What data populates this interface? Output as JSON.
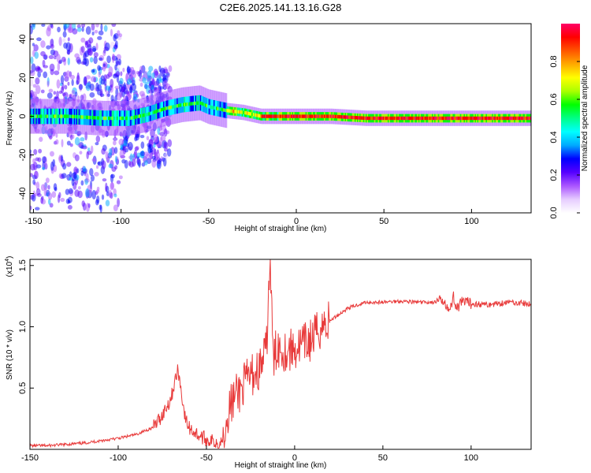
{
  "title": "C2E6.2025.141.13.16.G28",
  "chart_data": [
    {
      "type": "heatmap",
      "xlabel": "Height of straight line (km)",
      "ylabel": "Frequency (Hz)",
      "xlim": [
        -152,
        134
      ],
      "ylim": [
        -50,
        48
      ],
      "x_ticks": [
        -150,
        -100,
        -50,
        0,
        50,
        100
      ],
      "y_ticks": [
        -40,
        -20,
        0,
        20,
        40
      ],
      "colorbar": {
        "label": "Normalized spectral amplitude",
        "range": [
          0,
          1
        ],
        "ticks": [
          0.0,
          0.2,
          0.4,
          0.6,
          0.8
        ],
        "colors": [
          "#ffffff",
          "#e6ccff",
          "#aa55ff",
          "#5500ff",
          "#0000ff",
          "#00aaff",
          "#00ffff",
          "#00ff88",
          "#00ff00",
          "#aaff00",
          "#ffff00",
          "#ffaa00",
          "#ff5500",
          "#ff0000",
          "#ff0066"
        ]
      },
      "ridge": {
        "x": [
          -152,
          -130,
          -110,
          -95,
          -85,
          -75,
          -65,
          -55,
          -50,
          -40,
          -30,
          -25,
          -20,
          -10,
          0,
          10,
          20,
          40,
          60,
          80,
          100,
          120,
          134
        ],
        "frequency": [
          0,
          0,
          -1,
          -1,
          1,
          4,
          6,
          7,
          5,
          3,
          2,
          1,
          0,
          0,
          0,
          0,
          0,
          -1,
          -1,
          -1,
          -1,
          -1,
          -1
        ]
      }
    },
    {
      "type": "line",
      "xlabel": "Height of straight line (km)",
      "ylabel": "SNR (10 * v/v)",
      "multiplier_label": "(x10",
      "multiplier_exponent": "4",
      "xlim": [
        -150,
        134
      ],
      "ylim": [
        0,
        1.55
      ],
      "x_ticks": [
        -150,
        -100,
        -50,
        0,
        50,
        100
      ],
      "y_ticks": [
        0.5,
        1.0,
        1.5
      ],
      "y_tick_labels": [
        "0.5",
        "1.0",
        "1.5"
      ],
      "series": [
        {
          "color": "#e83a3a",
          "x": [
            -150,
            -140,
            -130,
            -120,
            -110,
            -100,
            -90,
            -80,
            -75,
            -70,
            -68,
            -66,
            -64,
            -62,
            -60,
            -55,
            -50,
            -45,
            -42,
            -40,
            -38,
            -35,
            -30,
            -25,
            -20,
            -16,
            -14,
            -12,
            -10,
            -5,
            0,
            5,
            10,
            15,
            20,
            25,
            30,
            40,
            50,
            60,
            70,
            80,
            85,
            88,
            90,
            92,
            95,
            100,
            110,
            120,
            125,
            130,
            134
          ],
          "y": [
            0.03,
            0.03,
            0.04,
            0.05,
            0.07,
            0.09,
            0.12,
            0.18,
            0.28,
            0.42,
            0.55,
            0.65,
            0.45,
            0.25,
            0.18,
            0.12,
            0.08,
            0.06,
            0.05,
            0.15,
            0.3,
            0.4,
            0.5,
            0.6,
            0.65,
            0.8,
            1.55,
            0.7,
            0.85,
            0.8,
            0.82,
            0.85,
            0.9,
            1.0,
            1.05,
            1.1,
            1.15,
            1.2,
            1.2,
            1.21,
            1.2,
            1.2,
            1.22,
            1.12,
            1.25,
            1.15,
            1.2,
            1.19,
            1.18,
            1.2,
            1.2,
            1.19,
            1.18
          ]
        }
      ]
    }
  ]
}
